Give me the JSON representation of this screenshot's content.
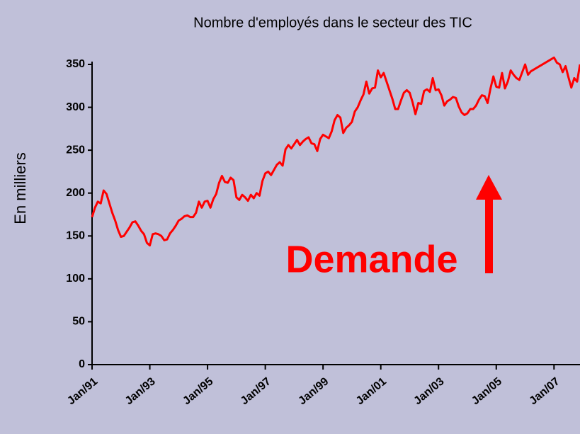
{
  "chart_data": {
    "type": "line",
    "title": "Nombre d'employés dans le secteur des TIC",
    "y_label": "En  milliers",
    "annotation": "Demande",
    "xlim": [
      1991,
      2007.9
    ],
    "xticks": [
      {
        "value": 1991,
        "label": "Jan/91"
      },
      {
        "value": 1993,
        "label": "Jan/93"
      },
      {
        "value": 1995,
        "label": "Jan/95"
      },
      {
        "value": 1997,
        "label": "Jan/97"
      },
      {
        "value": 1999,
        "label": "Jan/99"
      },
      {
        "value": 2001,
        "label": "Jan/01"
      },
      {
        "value": 2003,
        "label": "Jan/03"
      },
      {
        "value": 2005,
        "label": "Jan/05"
      },
      {
        "value": 2007,
        "label": "Jan/07"
      }
    ],
    "ylim": [
      0,
      350
    ],
    "yticks": [
      0,
      50,
      100,
      150,
      200,
      250,
      300,
      350
    ],
    "grid": false,
    "series": [
      {
        "color": "#ff0000",
        "x": [
          1991,
          1991.1,
          1991.2,
          1991.3,
          1991.4,
          1991.5,
          1991.6,
          1991.7,
          1991.8,
          1991.9,
          1992,
          1992.1,
          1992.2,
          1992.3,
          1992.4,
          1992.5,
          1992.6,
          1992.7,
          1992.8,
          1992.9,
          1993,
          1993.1,
          1993.2,
          1993.3,
          1993.4,
          1993.5,
          1993.6,
          1993.7,
          1993.8,
          1993.9,
          1994,
          1994.1,
          1994.2,
          1994.3,
          1994.4,
          1994.5,
          1994.6,
          1994.7,
          1994.8,
          1994.9,
          1995,
          1995.1,
          1995.2,
          1995.3,
          1995.4,
          1995.5,
          1995.6,
          1995.7,
          1995.8,
          1995.9,
          1996,
          1996.1,
          1996.2,
          1996.3,
          1996.4,
          1996.5,
          1996.6,
          1996.7,
          1996.8,
          1996.9,
          1997,
          1997.1,
          1997.2,
          1997.3,
          1997.4,
          1997.5,
          1997.6,
          1997.7,
          1997.8,
          1997.9,
          1998,
          1998.1,
          1998.2,
          1998.3,
          1998.4,
          1998.5,
          1998.6,
          1998.7,
          1998.8,
          1998.9,
          1999,
          1999.1,
          1999.2,
          1999.3,
          1999.4,
          1999.5,
          1999.6,
          1999.7,
          1999.8,
          1999.9,
          2000,
          2000.1,
          2000.2,
          2000.3,
          2000.4,
          2000.5,
          2000.6,
          2000.7,
          2000.8,
          2000.9,
          2001,
          2001.1,
          2001.2,
          2001.3,
          2001.4,
          2001.5,
          2001.6,
          2001.7,
          2001.8,
          2001.9,
          2002,
          2002.1,
          2002.2,
          2002.3,
          2002.4,
          2002.5,
          2002.6,
          2002.7,
          2002.8,
          2002.9,
          2003,
          2003.1,
          2003.2,
          2003.3,
          2003.4,
          2003.5,
          2003.6,
          2003.7,
          2003.8,
          2003.9,
          2004,
          2004.1,
          2004.2,
          2004.3,
          2004.4,
          2004.5,
          2004.6,
          2004.7,
          2004.8,
          2004.9,
          2005,
          2005.1,
          2005.2,
          2005.3,
          2005.4,
          2005.5,
          2005.6,
          2005.7,
          2005.8,
          2005.9,
          2006,
          2006.1,
          2006.2,
          2007,
          2007.1,
          2007.2,
          2007.3,
          2007.4,
          2007.5,
          2007.6,
          2007.7,
          2007.8,
          2007.9
        ],
        "values": [
          172,
          183,
          190,
          188,
          203,
          199,
          188,
          177,
          168,
          157,
          149,
          150,
          155,
          160,
          166,
          167,
          162,
          156,
          152,
          142,
          139,
          152,
          153,
          152,
          150,
          145,
          146,
          153,
          157,
          162,
          168,
          170,
          173,
          174,
          172,
          172,
          177,
          190,
          183,
          190,
          191,
          183,
          193,
          199,
          212,
          220,
          213,
          212,
          218,
          215,
          195,
          192,
          198,
          195,
          191,
          198,
          194,
          200,
          197,
          214,
          223,
          225,
          221,
          227,
          233,
          236,
          232,
          251,
          256,
          252,
          257,
          262,
          256,
          260,
          263,
          265,
          258,
          257,
          249,
          263,
          268,
          266,
          264,
          272,
          285,
          291,
          288,
          270,
          276,
          279,
          283,
          295,
          300,
          308,
          315,
          330,
          316,
          322,
          323,
          343,
          335,
          340,
          330,
          320,
          310,
          298,
          298,
          308,
          317,
          320,
          317,
          306,
          292,
          305,
          304,
          319,
          321,
          318,
          334,
          320,
          321,
          314,
          302,
          307,
          309,
          312,
          311,
          301,
          294,
          291,
          293,
          298,
          298,
          302,
          309,
          314,
          313,
          305,
          322,
          336,
          324,
          323,
          340,
          322,
          330,
          343,
          338,
          334,
          332,
          341,
          350,
          338,
          342,
          358,
          352,
          350,
          341,
          348,
          335,
          323,
          334,
          330,
          350
        ]
      }
    ]
  }
}
